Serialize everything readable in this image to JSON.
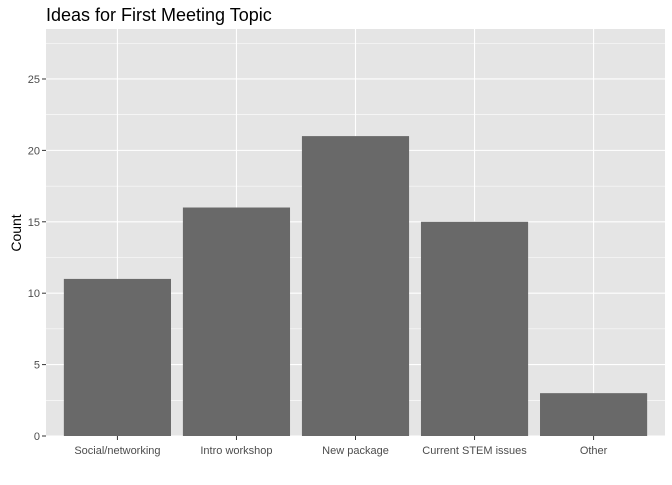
{
  "chart_data": {
    "type": "bar",
    "title": "Ideas for First Meeting Topic",
    "xlabel": "",
    "ylabel": "Count",
    "categories": [
      "Social/networking",
      "Intro workshop",
      "New package",
      "Current STEM issues",
      "Other"
    ],
    "values": [
      11,
      16,
      21,
      15,
      3
    ],
    "ylim": [
      0,
      28.5
    ],
    "yticks": [
      0,
      5,
      10,
      15,
      20,
      25
    ],
    "grid": true,
    "legend": "none",
    "colors": {
      "panel_background": "#e5e5e5",
      "gridline": "#ffffff",
      "bar_fill": "#696969",
      "text": "#000000",
      "tick_text": "#4d4d4d"
    }
  }
}
